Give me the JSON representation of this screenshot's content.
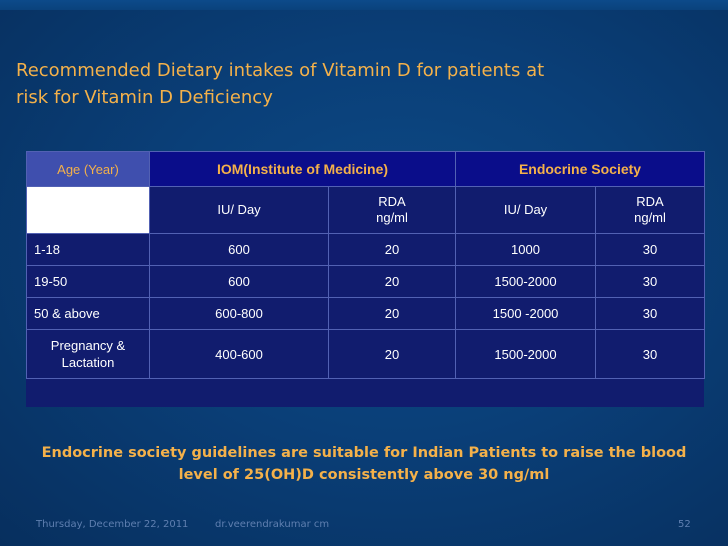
{
  "slide": {
    "title_line1": "Recommended Dietary intakes of Vitamin D for patients at",
    "title_line2": "risk for Vitamin  D Deficiency"
  },
  "table": {
    "headers": {
      "age": "Age (Year)",
      "iom": "IOM(Institute of Medicine)",
      "endocrine": "Endocrine Society"
    },
    "subheaders": {
      "iom_iu": "IU/ Day",
      "iom_rda_l1": "RDA",
      "iom_rda_l2": "ng/ml",
      "endo_iu": "IU/ Day",
      "endo_rda_l1": "RDA",
      "endo_rda_l2": "ng/ml"
    },
    "rows": [
      {
        "age": "1-18",
        "iom_iu": "600",
        "iom_rda": "20",
        "endo_iu": "1000",
        "endo_rda": "30"
      },
      {
        "age": "19-50",
        "iom_iu": "600",
        "iom_rda": "20",
        "endo_iu": "1500-2000",
        "endo_rda": "30"
      },
      {
        "age": "50 & above",
        "iom_iu": "600-800",
        "iom_rda": "20",
        "endo_iu": "1500 -2000",
        "endo_rda": "30"
      },
      {
        "age_l1": "Pregnancy &",
        "age_l2": "Lactation",
        "iom_iu": "400-600",
        "iom_rda": "20",
        "endo_iu": "1500-2000",
        "endo_rda": "30"
      }
    ]
  },
  "note": {
    "line1": "Endocrine society guidelines are suitable for Indian Patients to raise the blood",
    "line2": "level of 25(OH)D consistently above 30 ng/ml"
  },
  "footer": {
    "date": "Thursday, December 22, 2011",
    "author": "dr.veerendrakumar cm",
    "page": "52"
  }
}
